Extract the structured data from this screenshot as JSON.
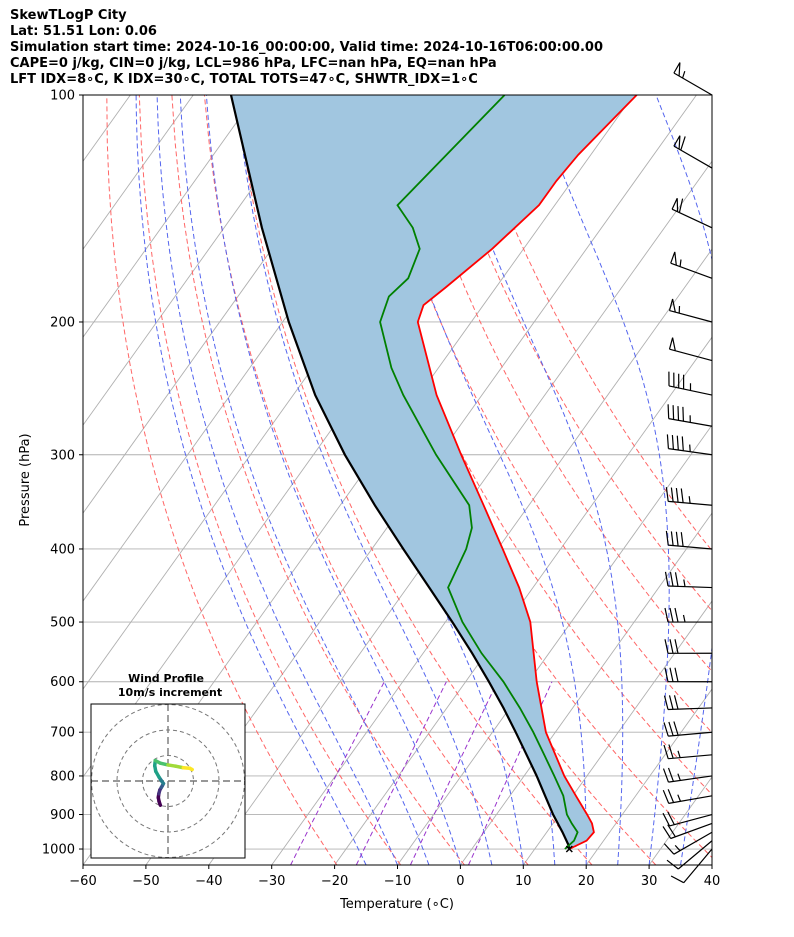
{
  "header": {
    "line1": "SkewTLogP City",
    "line2": "Lat: 51.51   Lon: 0.06",
    "line3": "Simulation start time: 2024-10-16_00:00:00, Valid time: 2024-10-16T06:00:00.00",
    "line4": "CAPE=0 j/kg, CIN=0 j/kg, LCL=986 hPa, LFC=nan hPa, EQ=nan hPa",
    "line5": "LFT IDX=8∘C, K IDX=30∘C, TOTAL TOTS=47∘C, SHWTR_IDX=1∘C"
  },
  "chart_data": [
    {
      "type": "line",
      "subtype": "skew-t log-p",
      "xlabel": "Temperature (∘C)",
      "ylabel": "Pressure (hPa)",
      "xlim": [
        -60,
        40
      ],
      "ylim": [
        1050,
        100
      ],
      "yscale": "log",
      "x_ticks": [
        -60,
        -50,
        -40,
        -30,
        -20,
        -10,
        0,
        10,
        20,
        30,
        40
      ],
      "x_tick_labels": [
        "−60",
        "−50",
        "−40",
        "−30",
        "−20",
        "−10",
        "0",
        "10",
        "20",
        "30",
        "40"
      ],
      "y_ticks": [
        1000,
        900,
        800,
        700,
        600,
        500,
        400,
        300,
        200,
        100
      ],
      "y_tick_labels": [
        "1000",
        "900",
        "800",
        "700",
        "600",
        "500",
        "400",
        "300",
        "200",
        "100"
      ],
      "grid": true,
      "isotherms_degC": [
        -150,
        -140,
        -130,
        -120,
        -110,
        -100,
        -90,
        -80,
        -70,
        -60,
        -50,
        -40,
        -30,
        -20,
        -10,
        0,
        10,
        20,
        30,
        40
      ],
      "dry_adiabats_K": [
        250,
        260,
        270,
        280,
        290,
        300,
        310,
        320,
        330,
        340,
        350,
        360
      ],
      "moist_adiabats_start_degC": [
        -15,
        -10,
        -5,
        0,
        5,
        10,
        15,
        20,
        25,
        30,
        35
      ],
      "mixing_ratio_g_per_kg": [
        0.4,
        1,
        2,
        4
      ],
      "colors": {
        "temperature": "#ff0000",
        "dewpoint": "#008000",
        "parcel": "#000000",
        "fill": "#a1c6e0",
        "isotherm": "#b0b0b0",
        "dry_adiabat": "#ff6666",
        "moist_adiabat": "#5566ee",
        "mixing_ratio": "#9933cc",
        "wind_barb": "#000000"
      },
      "series": [
        {
          "name": "",
          "role": "temperature",
          "p": [
            1000,
            975,
            950,
            925,
            900,
            850,
            800,
            700,
            600,
            500,
            450,
            400,
            350,
            300,
            250,
            200,
            190,
            180,
            160,
            140,
            130,
            120,
            100
          ],
          "t": [
            15.5,
            17.3,
            17.5,
            16.2,
            14.4,
            10.5,
            6.4,
            -1.5,
            -8.7,
            -16.5,
            -22.2,
            -29.2,
            -37.2,
            -46.5,
            -57.2,
            -68.5,
            -69.5,
            -68.0,
            -65.0,
            -62.5,
            -62.5,
            -62.0,
            -59.5
          ]
        },
        {
          "name": "",
          "role": "dewpoint",
          "p": [
            1000,
            975,
            950,
            925,
            900,
            850,
            800,
            750,
            700,
            650,
            600,
            550,
            500,
            450,
            400,
            375,
            350,
            300,
            250,
            230,
            200,
            185,
            175,
            160,
            150,
            140,
            100
          ],
          "t": [
            14.8,
            15.3,
            14.9,
            13.0,
            11.2,
            8.5,
            4.8,
            0.8,
            -3.5,
            -8.4,
            -14.0,
            -20.7,
            -27.3,
            -33.5,
            -35.0,
            -36.5,
            -39.5,
            -50.5,
            -62.5,
            -67.5,
            -74.5,
            -76.0,
            -75.0,
            -76.5,
            -80.0,
            -85.0,
            -80.5
          ]
        },
        {
          "name": "",
          "role": "parcel",
          "p": [
            1000,
            986,
            950,
            900,
            850,
            800,
            750,
            700,
            650,
            600,
            550,
            500,
            450,
            400,
            350,
            300,
            250,
            200,
            150,
            100
          ],
          "t": [
            15.5,
            14.8,
            12.5,
            9.0,
            5.6,
            2.0,
            -2.0,
            -6.3,
            -11.0,
            -16.3,
            -22.2,
            -28.9,
            -36.5,
            -45.0,
            -54.5,
            -65.0,
            -76.5,
            -89.0,
            -104.0,
            -124.0
          ]
        }
      ],
      "wind_barbs": {
        "p": [
          1000,
          975,
          950,
          925,
          900,
          850,
          800,
          750,
          700,
          650,
          600,
          550,
          500,
          450,
          400,
          350,
          300,
          275,
          250,
          225,
          200,
          175,
          150,
          125,
          100
        ],
        "speed_kt": [
          10,
          12,
          15,
          20,
          22,
          25,
          27,
          28,
          30,
          30,
          32,
          34,
          35,
          38,
          40,
          45,
          45,
          45,
          48,
          50,
          55,
          55,
          60,
          60,
          55
        ],
        "direction_deg": [
          220,
          230,
          240,
          250,
          255,
          260,
          262,
          265,
          265,
          268,
          270,
          270,
          270,
          272,
          275,
          275,
          278,
          280,
          282,
          285,
          285,
          290,
          295,
          300,
          300
        ]
      }
    },
    {
      "type": "scatter",
      "subtype": "hodograph",
      "title": "Wind Profile",
      "subtitle": "10m/s increment",
      "ring_increment_ms": 10,
      "rings": 3,
      "u": [
        -3.0,
        -3.5,
        -3.8,
        -3.6,
        -3.2,
        -2.6,
        -2.2,
        -1.8,
        -2.5,
        -3.5,
        -4.8,
        -5.2,
        -5.0,
        -3.0,
        0.0,
        3.0,
        6.0,
        8.5,
        9.5
      ],
      "v": [
        -9.5,
        -8.0,
        -6.5,
        -5.0,
        -3.5,
        -2.5,
        -1.8,
        -1.0,
        0.0,
        1.5,
        3.8,
        6.0,
        8.0,
        7.0,
        6.3,
        5.8,
        5.2,
        5.0,
        4.5
      ],
      "colormap": [
        "#440154",
        "#46327e",
        "#365c8d",
        "#277f8e",
        "#1fa187",
        "#4ac16d",
        "#a0da39",
        "#fde725"
      ]
    }
  ]
}
